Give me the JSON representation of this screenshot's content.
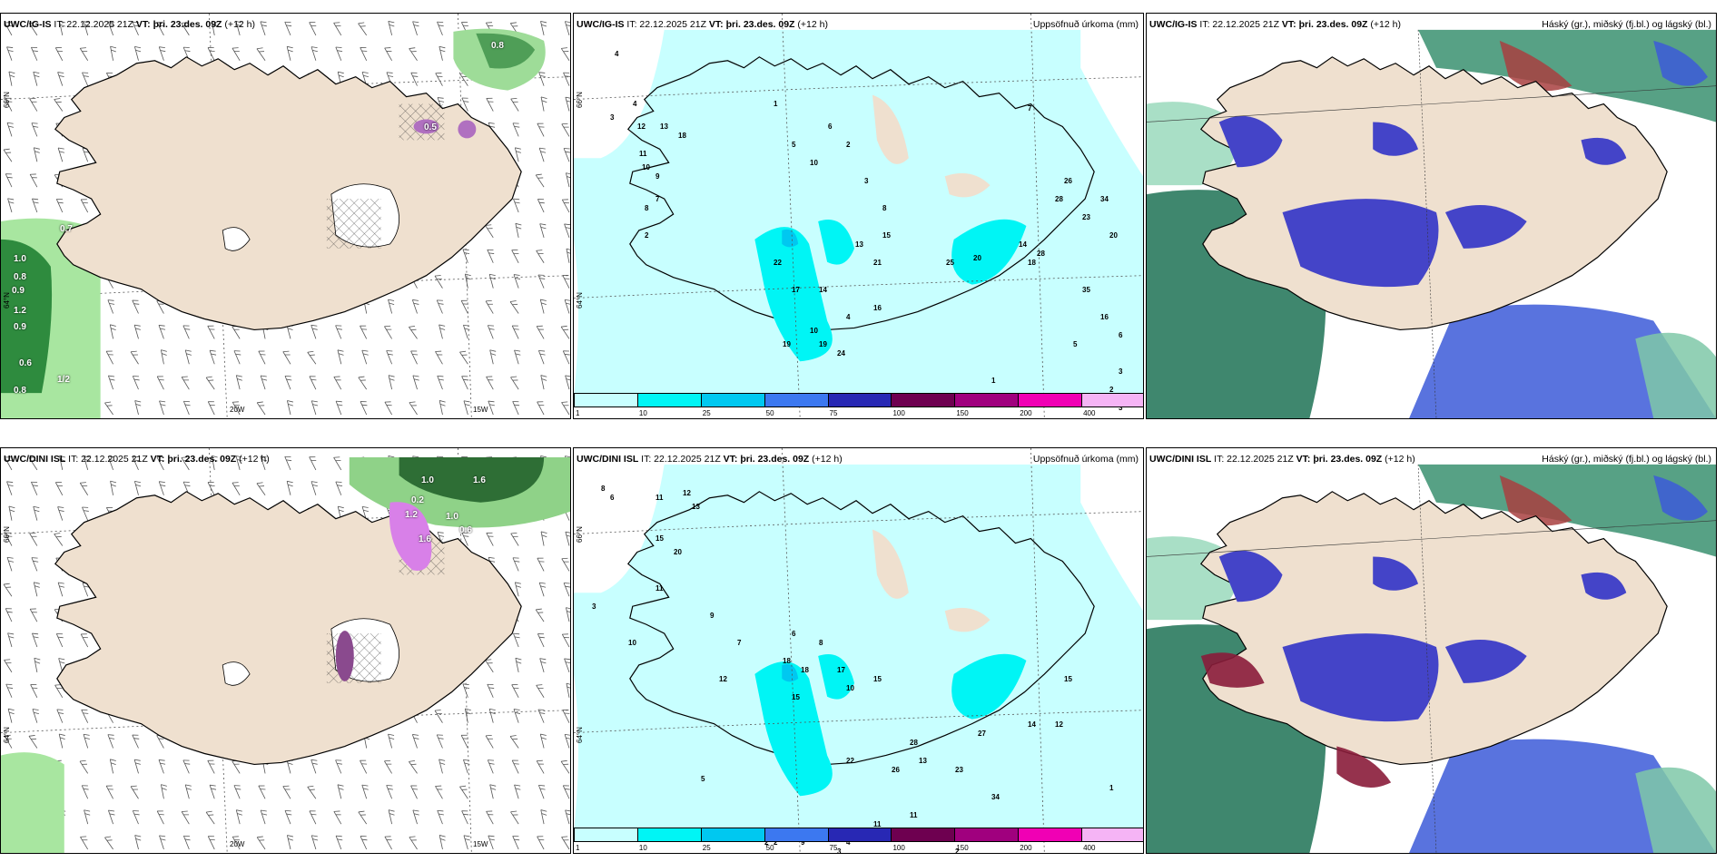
{
  "colorbar": {
    "colors": [
      "#c8ffff",
      "#00f5f5",
      "#00c8f0",
      "#3c78f0",
      "#2828b4",
      "#6e0050",
      "#a0007e",
      "#f000b4",
      "#f5b4f5"
    ],
    "ticks": [
      "1",
      "10",
      "25",
      "50",
      "75",
      "100",
      "150",
      "200",
      "400"
    ]
  },
  "panels": [
    {
      "id": "igis-wind",
      "model": "UWC/IG-IS",
      "issue": "IT: 22.12.2025 21Z",
      "valid_label": "VT:",
      "valid": "þri. 23.des. 09Z",
      "lead": "(+12 h)",
      "right_title": "",
      "axis": {
        "lat1": "66°N",
        "lat2": "64°N",
        "lon1": "20W",
        "lon2": "15W"
      },
      "values": [
        "0.7",
        "0.8",
        "0.5",
        "1.0",
        "0.8",
        "0.9",
        "1.2",
        "0.9",
        "0.6",
        "1/2",
        "0.8"
      ]
    },
    {
      "id": "igis-precip",
      "model": "UWC/IG-IS",
      "issue": "IT: 22.12.2025 21Z",
      "valid_label": "VT:",
      "valid": "þri. 23.des. 09Z",
      "lead": "(+12 h)",
      "right_title": "Uppsöfnuð úrkoma (mm)",
      "axis": {
        "lat1": "66°N",
        "lat2": "64°N"
      },
      "values": [
        "4",
        "3",
        "4",
        "12",
        "13",
        "18",
        "11",
        "10",
        "9",
        "7",
        "8",
        "2",
        "1",
        "5",
        "10",
        "6",
        "2",
        "3",
        "8",
        "15",
        "13",
        "22",
        "17",
        "14",
        "16",
        "4",
        "10",
        "19",
        "19",
        "24",
        "21",
        "25",
        "20",
        "14",
        "18",
        "28",
        "26",
        "28",
        "23",
        "34",
        "20",
        "35",
        "16",
        "6",
        "5",
        "1",
        "2",
        "2",
        "3",
        "3",
        "7"
      ]
    },
    {
      "id": "igis-cloud",
      "model": "UWC/IG-IS",
      "issue": "IT: 22.12.2025 21Z",
      "valid_label": "VT:",
      "valid": "þri. 23.des. 09Z",
      "lead": "(+12 h)",
      "right_title": "Háský (gr.), miðský (fj.bl.) og lágský (bl.)",
      "axis": {},
      "values": []
    },
    {
      "id": "dini-wind",
      "model": "UWC/DINI ISL",
      "issue": "IT: 22.12.2025 21Z",
      "valid_label": "VT:",
      "valid": "þri. 23.des. 09Z",
      "lead": "(+12 h)",
      "right_title": "",
      "axis": {
        "lat1": "66°N",
        "lat2": "64°N",
        "lon1": "20W",
        "lon2": "15W"
      },
      "values": [
        "1.0",
        "0.2",
        "1.2",
        "1.0",
        "0.6",
        "1.6",
        "1.6"
      ]
    },
    {
      "id": "dini-precip",
      "model": "UWC/DINI ISL",
      "issue": "IT: 22.12.2025 21Z",
      "valid_label": "VT:",
      "valid": "þri. 23.des. 09Z",
      "lead": "(+12 h)",
      "right_title": "Uppsöfnuð úrkoma (mm)",
      "axis": {
        "lat1": "66°N",
        "lat2": "64°N"
      },
      "values": [
        "8",
        "6",
        "11",
        "12",
        "13",
        "15",
        "20",
        "11",
        "3",
        "10",
        "9",
        "7",
        "6",
        "8",
        "18",
        "18",
        "17",
        "10",
        "15",
        "12",
        "15",
        "22",
        "26",
        "13",
        "28",
        "23",
        "27",
        "14",
        "12",
        "15",
        "34",
        "11",
        "11",
        "9",
        "5",
        "2",
        "3",
        "2",
        "4",
        "3",
        "2",
        "1"
      ]
    },
    {
      "id": "dini-cloud",
      "model": "UWC/DINI ISL",
      "issue": "IT: 22.12.2025 21Z",
      "valid_label": "VT:",
      "valid": "þri. 23.des. 09Z",
      "lead": "(+12 h)",
      "right_title": "Háský (gr.), miðský (fj.bl.) og lágský (bl.)",
      "axis": {},
      "values": []
    }
  ]
}
